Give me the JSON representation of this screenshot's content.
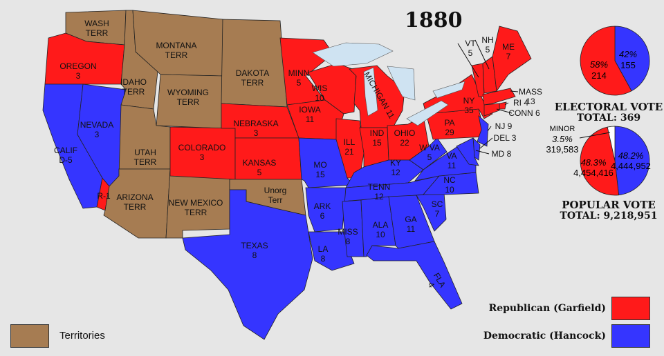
{
  "title": "1880",
  "colors": {
    "republican": "#ff1a1a",
    "democratic": "#3535ff",
    "territory": "#a67c52",
    "lake": "#cfe3f2",
    "minor": "#ffffff"
  },
  "states": [
    {
      "id": "wa",
      "name": "WASH",
      "value": "TERR",
      "party": "territory"
    },
    {
      "id": "or",
      "name": "OREGON",
      "value": "3",
      "party": "republican"
    },
    {
      "id": "ca",
      "name": "CALIF",
      "value": "D-5",
      "party": "democratic"
    },
    {
      "id": "ca_r",
      "name": "R-1",
      "value": "",
      "party": "republican"
    },
    {
      "id": "nv",
      "name": "NEVADA",
      "value": "3",
      "party": "democratic"
    },
    {
      "id": "id",
      "name": "IDAHO",
      "value": "TERR",
      "party": "territory"
    },
    {
      "id": "mt",
      "name": "MONTANA",
      "value": "TERR",
      "party": "territory"
    },
    {
      "id": "wy",
      "name": "WYOMING",
      "value": "TERR",
      "party": "territory"
    },
    {
      "id": "ut",
      "name": "UTAH",
      "value": "TERR",
      "party": "territory"
    },
    {
      "id": "az",
      "name": "ARIZONA",
      "value": "TERR",
      "party": "territory"
    },
    {
      "id": "nm",
      "name": "NEW MEXICO",
      "value": "TERR",
      "party": "territory"
    },
    {
      "id": "co",
      "name": "COLORADO",
      "value": "3",
      "party": "republican"
    },
    {
      "id": "dk",
      "name": "DAKOTA",
      "value": "TERR",
      "party": "territory"
    },
    {
      "id": "ne",
      "name": "NEBRASKA",
      "value": "3",
      "party": "republican"
    },
    {
      "id": "ks",
      "name": "KANSAS",
      "value": "5",
      "party": "republican"
    },
    {
      "id": "ok",
      "name": "Unorg",
      "value": "Terr",
      "party": "territory"
    },
    {
      "id": "tx",
      "name": "TEXAS",
      "value": "8",
      "party": "democratic"
    },
    {
      "id": "mn",
      "name": "MINN",
      "value": "5",
      "party": "republican"
    },
    {
      "id": "ia",
      "name": "IOWA",
      "value": "11",
      "party": "republican"
    },
    {
      "id": "wi",
      "name": "WIS",
      "value": "10",
      "party": "republican"
    },
    {
      "id": "mi",
      "name": "MICHIGAN",
      "value": "11",
      "party": "republican"
    },
    {
      "id": "il",
      "name": "ILL",
      "value": "21",
      "party": "republican"
    },
    {
      "id": "in",
      "name": "IND",
      "value": "15",
      "party": "republican"
    },
    {
      "id": "oh",
      "name": "OHIO",
      "value": "22",
      "party": "republican"
    },
    {
      "id": "mo",
      "name": "MO",
      "value": "15",
      "party": "democratic"
    },
    {
      "id": "ky",
      "name": "KY",
      "value": "12",
      "party": "democratic"
    },
    {
      "id": "tn",
      "name": "TENN",
      "value": "12",
      "party": "democratic"
    },
    {
      "id": "ar",
      "name": "ARK",
      "value": "6",
      "party": "democratic"
    },
    {
      "id": "la",
      "name": "LA",
      "value": "8",
      "party": "democratic"
    },
    {
      "id": "ms",
      "name": "MISS",
      "value": "8",
      "party": "democratic"
    },
    {
      "id": "al",
      "name": "ALA",
      "value": "10",
      "party": "democratic"
    },
    {
      "id": "ga",
      "name": "GA",
      "value": "11",
      "party": "democratic"
    },
    {
      "id": "fl",
      "name": "FLA",
      "value": "4",
      "party": "democratic"
    },
    {
      "id": "sc",
      "name": "SC",
      "value": "7",
      "party": "democratic"
    },
    {
      "id": "nc",
      "name": "NC",
      "value": "10",
      "party": "democratic"
    },
    {
      "id": "va",
      "name": "VA",
      "value": "11",
      "party": "democratic"
    },
    {
      "id": "wv",
      "name": "W VA",
      "value": "5",
      "party": "democratic"
    },
    {
      "id": "pa",
      "name": "PA",
      "value": "29",
      "party": "republican"
    },
    {
      "id": "ny",
      "name": "NY",
      "value": "35",
      "party": "republican"
    },
    {
      "id": "nj",
      "name": "NJ 9",
      "value": "",
      "party": "democratic"
    },
    {
      "id": "de",
      "name": "DEL 3",
      "value": "",
      "party": "democratic"
    },
    {
      "id": "md",
      "name": "MD 8",
      "value": "",
      "party": "democratic"
    },
    {
      "id": "vt",
      "name": "VT",
      "value": "5",
      "party": "republican"
    },
    {
      "id": "nh",
      "name": "NH",
      "value": "5",
      "party": "republican"
    },
    {
      "id": "me",
      "name": "ME",
      "value": "7",
      "party": "republican"
    },
    {
      "id": "ma",
      "name": "MASS",
      "value": "13",
      "party": "republican"
    },
    {
      "id": "ri",
      "name": "RI 4",
      "value": "",
      "party": "republican"
    },
    {
      "id": "ct",
      "name": "CONN 6",
      "value": "",
      "party": "republican"
    }
  ],
  "electoral_vote": {
    "title": "ELECTORAL  VOTE",
    "total": "TOTAL:  369",
    "slices": [
      {
        "party": "democratic",
        "value": 155,
        "pct": "42%",
        "label": "155"
      },
      {
        "party": "republican",
        "value": 214,
        "pct": "58%",
        "label": "214"
      }
    ]
  },
  "popular_vote": {
    "title": "POPULAR  VOTE",
    "total": "TOTAL:  9,218,951",
    "slices": [
      {
        "party": "democratic",
        "value": 4444952,
        "pct": "48.2%",
        "label": "4,444,952"
      },
      {
        "party": "republican",
        "value": 4454416,
        "pct": "48.3%",
        "label": "4,454,416"
      },
      {
        "party": "minor",
        "value": 319583,
        "pct": "3.5%",
        "label": "319,583",
        "name": "MINOR"
      }
    ]
  },
  "legend": {
    "territories": "Territories",
    "republican": "Republican (Garfield)",
    "democratic": "Democratic (Hancock)"
  }
}
